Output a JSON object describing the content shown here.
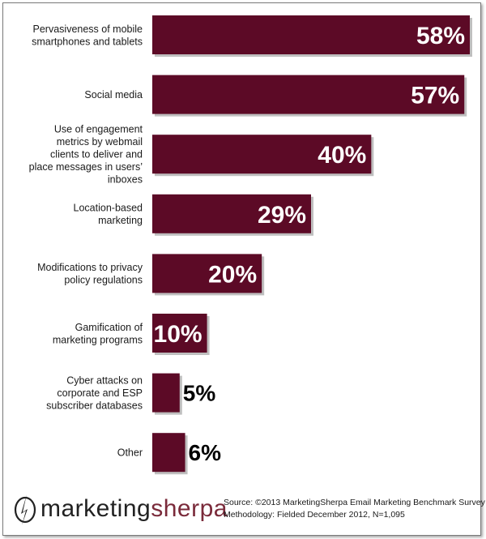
{
  "chart_data": {
    "type": "bar",
    "orientation": "horizontal",
    "title": "",
    "xlabel": "",
    "ylabel": "",
    "xlim": [
      0,
      58
    ],
    "grid": false,
    "bar_color": "#5c0a26",
    "categories": [
      [
        "Pervasiveness  of mobile",
        "smartphones and tablets"
      ],
      [
        "Social media"
      ],
      [
        "Use of engagement",
        "metrics by webmail",
        "clients to deliver  and",
        "place messages in users’",
        "inboxes"
      ],
      [
        "Location-based",
        "marketing"
      ],
      [
        "Modifications to privacy",
        "policy regulations"
      ],
      [
        "Gamification of",
        "marketing programs"
      ],
      [
        "Cyber attacks on",
        "corporate and ESP",
        "subscriber databases"
      ],
      [
        "Other"
      ]
    ],
    "values": [
      58,
      57,
      40,
      29,
      20,
      10,
      5,
      6
    ],
    "data_labels": [
      "58%",
      "57%",
      "40%",
      "29%",
      "20%",
      "10%",
      "5%",
      "6%"
    ]
  },
  "logo": {
    "part1": "marketing",
    "part2": "sherpa"
  },
  "source": {
    "line1": "Source:  ©2013 MarketingSherpa Email Marketing Benchmark Survey",
    "line2": "Methodology: Fielded December 2012, N=1,095"
  }
}
